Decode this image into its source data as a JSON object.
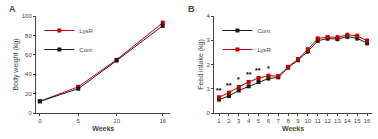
{
  "chart_data": [
    {
      "type": "line",
      "title": "A",
      "xlabel": "Weeks",
      "ylabel": "Body weight (kg)",
      "x": [
        0,
        5,
        10,
        16
      ],
      "series": [
        {
          "name": "LysR",
          "color": "#c00000",
          "values": [
            12,
            27,
            55,
            93
          ],
          "errors": [
            0.4,
            0.8,
            1.2,
            1.5
          ]
        },
        {
          "name": "Cont",
          "color": "#1a1a1a",
          "values": [
            12,
            25,
            54,
            90
          ],
          "errors": [
            0.4,
            0.8,
            1.2,
            1.5
          ]
        }
      ],
      "xlim": [
        -0.5,
        17
      ],
      "ylim": [
        0,
        100
      ],
      "xticks": [
        0,
        5,
        10,
        16
      ],
      "yticks": [
        0,
        20,
        40,
        60,
        80,
        100
      ],
      "marker": "square",
      "line_style": "solid",
      "legend": "upper left",
      "grid": false
    },
    {
      "type": "line",
      "title": "B",
      "xlabel": "Weeks",
      "ylabel": "Feed intake (kg)",
      "x": [
        1,
        2,
        3,
        4,
        5,
        6,
        7,
        8,
        9,
        10,
        11,
        12,
        13,
        14,
        15,
        16
      ],
      "series": [
        {
          "name": "Cont",
          "color": "#1a1a1a",
          "values": [
            0.55,
            0.7,
            0.93,
            1.1,
            1.28,
            1.42,
            1.47,
            1.87,
            2.18,
            2.54,
            2.98,
            3.07,
            3.05,
            3.15,
            3.08,
            2.88
          ],
          "errors": [
            0.03,
            0.03,
            0.04,
            0.04,
            0.04,
            0.04,
            0.04,
            0.05,
            0.06,
            0.07,
            0.06,
            0.06,
            0.07,
            0.07,
            0.07,
            0.07
          ]
        },
        {
          "name": "LysR",
          "color": "#c00000",
          "values": [
            0.65,
            0.84,
            1.07,
            1.28,
            1.44,
            1.54,
            1.52,
            1.9,
            2.22,
            2.62,
            3.07,
            3.13,
            3.12,
            3.22,
            3.18,
            2.98
          ],
          "errors": [
            0.03,
            0.03,
            0.04,
            0.04,
            0.04,
            0.04,
            0.04,
            0.05,
            0.06,
            0.07,
            0.06,
            0.06,
            0.07,
            0.07,
            0.07,
            0.07
          ]
        }
      ],
      "annotations": [
        {
          "x": 1,
          "text": "**",
          "series": "LysR"
        },
        {
          "x": 2,
          "text": "**",
          "series": "LysR"
        },
        {
          "x": 3,
          "text": "*",
          "series": "LysR"
        },
        {
          "x": 4,
          "text": "**",
          "series": "LysR"
        },
        {
          "x": 5,
          "text": "**",
          "series": "LysR"
        },
        {
          "x": 6,
          "text": "*",
          "series": "LysR"
        }
      ],
      "xlim": [
        0.5,
        16.5
      ],
      "ylim": [
        0,
        4
      ],
      "xticks": [
        1,
        2,
        3,
        4,
        5,
        6,
        7,
        8,
        9,
        10,
        11,
        12,
        13,
        14,
        15,
        16
      ],
      "yticks": [
        0,
        1,
        2,
        3,
        4
      ],
      "marker": "square",
      "line_style": "solid",
      "legend": "upper left",
      "grid": false
    }
  ]
}
